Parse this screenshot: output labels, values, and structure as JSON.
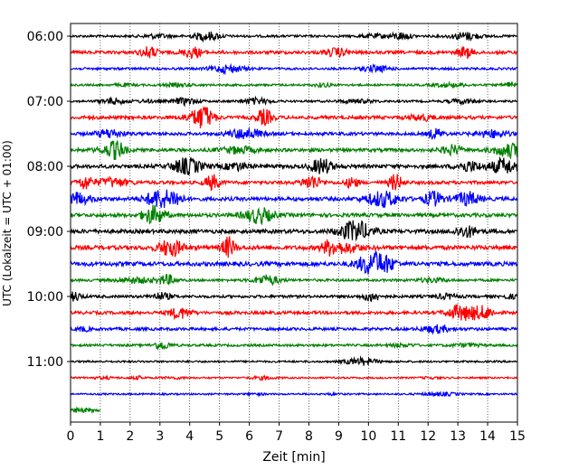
{
  "chart_data": {
    "type": "line",
    "title": "",
    "xlabel": "Zeit  [min]",
    "ylabel": "UTC (Lokalzeit = UTC + 01:00)",
    "xlim": [
      0,
      15
    ],
    "x_ticks": [
      0,
      1,
      2,
      3,
      4,
      5,
      6,
      7,
      8,
      9,
      10,
      11,
      12,
      13,
      14,
      15
    ],
    "grid": {
      "x": true,
      "y": false
    },
    "y_ticks": [
      "06:00",
      "07:00",
      "08:00",
      "09:00",
      "10:00",
      "11:00"
    ],
    "trace_start_times": [
      "06:00",
      "06:15",
      "06:30",
      "06:45",
      "07:00",
      "07:15",
      "07:30",
      "07:45",
      "08:00",
      "08:15",
      "08:30",
      "08:45",
      "09:00",
      "09:15",
      "09:30",
      "09:45",
      "10:00",
      "10:15",
      "10:30",
      "10:45",
      "11:00",
      "11:15",
      "11:30",
      "11:45"
    ],
    "trace_colors": [
      "#000000",
      "#ff0000",
      "#0000ff",
      "#008000"
    ],
    "trace_amplitude": [
      0.25,
      0.45,
      0.25,
      0.2,
      0.2,
      0.5,
      0.45,
      0.5,
      0.6,
      0.5,
      0.6,
      0.6,
      0.65,
      0.7,
      0.7,
      0.3,
      0.35,
      0.45,
      0.4,
      0.25,
      0.15,
      0.1,
      0.1,
      0.12
    ],
    "last_trace_end_minute": 1.0
  }
}
